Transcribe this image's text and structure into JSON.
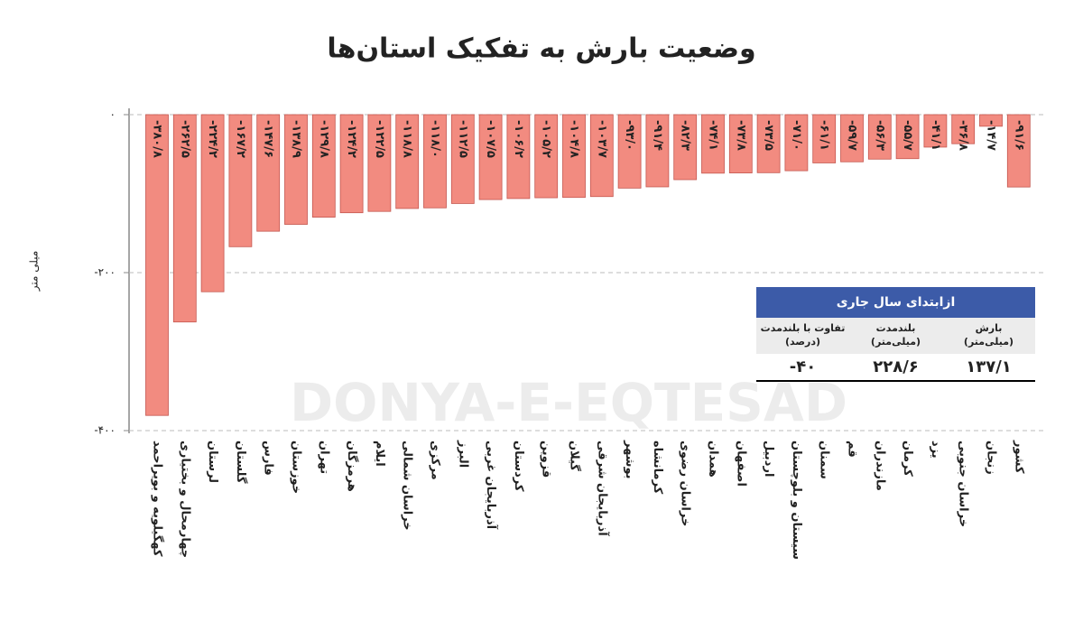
{
  "chart_data": {
    "type": "bar",
    "title": "وضعیت بارش  به تفکیک استان‌ها",
    "y_label": "میلی متر",
    "watermark": "DONYA-E-EQTESAD",
    "color": "#f28b80",
    "grid": true,
    "ylim": [
      -400,
      0
    ],
    "yticks": [
      {
        "value": 0,
        "label": "۰"
      },
      {
        "value": -200,
        "label": "-۲۰۰"
      },
      {
        "value": -400,
        "label": "-۴۰۰"
      }
    ],
    "categories": [
      "کهگیلویه و بویراحمد",
      "چهارمحال و بختیاری",
      "لرستان",
      "گلستان",
      "فارس",
      "خوزستان",
      "تهران",
      "هرمزگان",
      "ایلام",
      "خراسان شمالی",
      "مرکزی",
      "البرز",
      "آذربایجان غربی",
      "کردستان",
      "قزوین",
      "گیلان",
      "آذربایجان شرقی",
      "بوشهر",
      "کرمانشاه",
      "خراسان رضوی",
      "همدان",
      "اصفهان",
      "اردبیل",
      "سیستان و بلوچستان",
      "سمنان",
      "قم",
      "مازندران",
      "کرمان",
      "یزد",
      "خراسان جنوبی",
      "زنجان",
      "کشور"
    ],
    "values": [
      -380.8,
      -262.5,
      -224.2,
      -167.2,
      -147.6,
      -138.9,
      -129.8,
      -124.2,
      -122.5,
      -118.8,
      -118.0,
      -112.5,
      -107.5,
      -106.2,
      -105.2,
      -104.8,
      -103.7,
      -93.0,
      -91.4,
      -82.3,
      -74.1,
      -73.8,
      -73.5,
      -71.0,
      -61.1,
      -59.7,
      -56.3,
      -55.7,
      -41.1,
      -36.8,
      -14.7,
      -91.6
    ],
    "value_labels": [
      "-۳۸۰/۸",
      "-۲۶۲/۵",
      "-۲۲۴/۲",
      "-۱۶۷/۲",
      "-۱۴۷/۶",
      "-۱۳۸/۹",
      "-۱۲۹/۸",
      "-۱۲۴/۲",
      "-۱۲۲/۵",
      "-۱۱۸/۸",
      "-۱۱۸/۰",
      "-۱۱۲/۵",
      "-۱۰۷/۵",
      "-۱۰۶/۲",
      "-۱۰۵/۲",
      "-۱۰۴/۸",
      "-۱۰۳/۷",
      "-۹۳/۰",
      "-۹۱/۴",
      "-۸۲/۳",
      "-۷۴/۱",
      "-۷۳/۸",
      "-۷۳/۵",
      "-۷۱/۰",
      "-۶۱/۱",
      "-۵۹/۷",
      "-۵۶/۳",
      "-۵۵/۷",
      "-۴۱/۱",
      "-۳۶/۸",
      "-۱۴/۷",
      "-۹۱/۶"
    ],
    "table": {
      "title": "ازابتدای سال جاری",
      "header_color": "#3c5ba8",
      "headers": [
        [
          "بارش",
          "(میلی‌متر)"
        ],
        [
          "بلندمدت",
          "(میلی‌متر)"
        ],
        [
          "تفاوت با بلندمدت",
          "(درصد)"
        ]
      ],
      "values": [
        "۱۳۷/۱",
        "۲۲۸/۶",
        "-۴۰"
      ]
    }
  }
}
